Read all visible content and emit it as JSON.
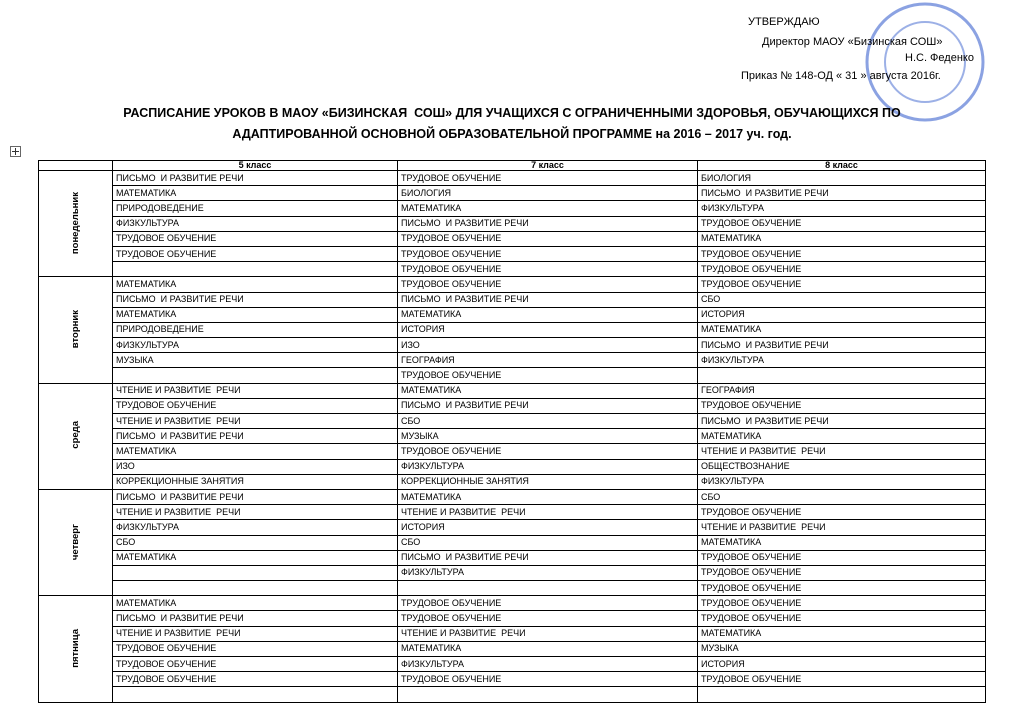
{
  "approval": {
    "title": "УТВЕРЖДАЮ",
    "position": "Директор МАОУ «Бизинская СОШ»",
    "name": "Н.С. Феденко",
    "order": "Приказ № 148-ОД « 31 » августа 2016г."
  },
  "header": {
    "title_line1": "РАСПИСАНИЕ УРОКОВ В МАОУ «БИЗИНСКАЯ  СОШ» ДЛЯ УЧАЩИХСЯ С ОГРАНИЧЕННЫМИ ЗДОРОВЬЯ, ОБУЧАЮЩИХСЯ ПО",
    "title_line2": "АДАПТИРОВАННОЙ ОСНОВНОЙ ОБРАЗОВАТЕЛЬНОЙ ПРОГРАММЕ на 2016 – 2017 уч. год."
  },
  "table": {
    "columns": [
      null,
      "5 класс",
      "7 класс",
      "8 класс"
    ],
    "days": [
      {
        "name": "понедельник",
        "rows": [
          [
            "ПИСЬМО  И РАЗВИТИЕ РЕЧИ",
            "ТРУДОВОЕ ОБУЧЕНИЕ",
            "БИОЛОГИЯ"
          ],
          [
            "МАТЕМАТИКА",
            "БИОЛОГИЯ",
            "ПИСЬМО  И РАЗВИТИЕ РЕЧИ"
          ],
          [
            "ПРИРОДОВЕДЕНИЕ",
            "МАТЕМАТИКА",
            "ФИЗКУЛЬТУРА"
          ],
          [
            "ФИЗКУЛЬТУРА",
            "ПИСЬМО  И РАЗВИТИЕ РЕЧИ",
            "ТРУДОВОЕ ОБУЧЕНИЕ"
          ],
          [
            "ТРУДОВОЕ ОБУЧЕНИЕ",
            "ТРУДОВОЕ ОБУЧЕНИЕ",
            "МАТЕМАТИКА"
          ],
          [
            "ТРУДОВОЕ ОБУЧЕНИЕ",
            "ТРУДОВОЕ ОБУЧЕНИЕ",
            "ТРУДОВОЕ ОБУЧЕНИЕ"
          ],
          [
            null,
            "ТРУДОВОЕ ОБУЧЕНИЕ",
            "ТРУДОВОЕ ОБУЧЕНИЕ"
          ]
        ]
      },
      {
        "name": "вторник",
        "rows": [
          [
            "МАТЕМАТИКА",
            "ТРУДОВОЕ ОБУЧЕНИЕ",
            "ТРУДОВОЕ ОБУЧЕНИЕ"
          ],
          [
            "ПИСЬМО  И РАЗВИТИЕ РЕЧИ",
            "ПИСЬМО  И РАЗВИТИЕ РЕЧИ",
            "СБО"
          ],
          [
            "МАТЕМАТИКА",
            "МАТЕМАТИКА",
            "ИСТОРИЯ"
          ],
          [
            "ПРИРОДОВЕДЕНИЕ",
            "ИСТОРИЯ",
            "МАТЕМАТИКА"
          ],
          [
            "ФИЗКУЛЬТУРА",
            "ИЗО",
            "ПИСЬМО  И РАЗВИТИЕ РЕЧИ"
          ],
          [
            "МУЗЫКА",
            "ГЕОГРАФИЯ",
            "ФИЗКУЛЬТУРА"
          ],
          [
            null,
            "ТРУДОВОЕ ОБУЧЕНИЕ",
            null
          ]
        ]
      },
      {
        "name": "среда",
        "rows": [
          [
            "ЧТЕНИЕ И РАЗВИТИЕ  РЕЧИ",
            "МАТЕМАТИКА",
            "ГЕОГРАФИЯ"
          ],
          [
            "ТРУДОВОЕ ОБУЧЕНИЕ",
            "ПИСЬМО  И РАЗВИТИЕ РЕЧИ",
            "ТРУДОВОЕ ОБУЧЕНИЕ"
          ],
          [
            "ЧТЕНИЕ И РАЗВИТИЕ  РЕЧИ",
            "СБО",
            "ПИСЬМО  И РАЗВИТИЕ РЕЧИ"
          ],
          [
            "ПИСЬМО  И РАЗВИТИЕ РЕЧИ",
            "МУЗЫКА",
            "МАТЕМАТИКА"
          ],
          [
            "МАТЕМАТИКА",
            "ТРУДОВОЕ ОБУЧЕНИЕ",
            "ЧТЕНИЕ И РАЗВИТИЕ  РЕЧИ"
          ],
          [
            "ИЗО",
            "ФИЗКУЛЬТУРА",
            "ОБЩЕСТВОЗНАНИЕ"
          ],
          [
            "КОРРЕКЦИОННЫЕ ЗАНЯТИЯ",
            "КОРРЕКЦИОННЫЕ ЗАНЯТИЯ",
            "ФИЗКУЛЬТУРА"
          ]
        ]
      },
      {
        "name": "четверг",
        "rows": [
          [
            "ПИСЬМО  И РАЗВИТИЕ РЕЧИ",
            "МАТЕМАТИКА",
            "СБО"
          ],
          [
            "ЧТЕНИЕ И РАЗВИТИЕ  РЕЧИ",
            "ЧТЕНИЕ И РАЗВИТИЕ  РЕЧИ",
            "ТРУДОВОЕ ОБУЧЕНИЕ"
          ],
          [
            "ФИЗКУЛЬТУРА",
            "ИСТОРИЯ",
            "ЧТЕНИЕ И РАЗВИТИЕ  РЕЧИ"
          ],
          [
            "СБО",
            "СБО",
            "МАТЕМАТИКА"
          ],
          [
            "МАТЕМАТИКА",
            "ПИСЬМО  И РАЗВИТИЕ РЕЧИ",
            "ТРУДОВОЕ ОБУЧЕНИЕ"
          ],
          [
            null,
            "ФИЗКУЛЬТУРА",
            "ТРУДОВОЕ ОБУЧЕНИЕ"
          ],
          [
            null,
            null,
            "ТРУДОВОЕ ОБУЧЕНИЕ"
          ]
        ]
      },
      {
        "name": "пятница",
        "rows": [
          [
            "МАТЕМАТИКА",
            "ТРУДОВОЕ ОБУЧЕНИЕ",
            "ТРУДОВОЕ ОБУЧЕНИЕ"
          ],
          [
            "ПИСЬМО  И РАЗВИТИЕ РЕЧИ",
            "ТРУДОВОЕ ОБУЧЕНИЕ",
            "ТРУДОВОЕ ОБУЧЕНИЕ"
          ],
          [
            "ЧТЕНИЕ И РАЗВИТИЕ  РЕЧИ",
            "ЧТЕНИЕ И РАЗВИТИЕ  РЕЧИ",
            "МАТЕМАТИКА"
          ],
          [
            "ТРУДОВОЕ ОБУЧЕНИЕ",
            "МАТЕМАТИКА",
            "МУЗЫКА"
          ],
          [
            "ТРУДОВОЕ ОБУЧЕНИЕ",
            "ФИЗКУЛЬТУРА",
            "ИСТОРИЯ"
          ],
          [
            "ТРУДОВОЕ ОБУЧЕНИЕ",
            "ТРУДОВОЕ ОБУЧЕНИЕ",
            "ТРУДОВОЕ ОБУЧЕНИЕ"
          ],
          [
            null,
            null,
            null
          ]
        ]
      }
    ]
  }
}
